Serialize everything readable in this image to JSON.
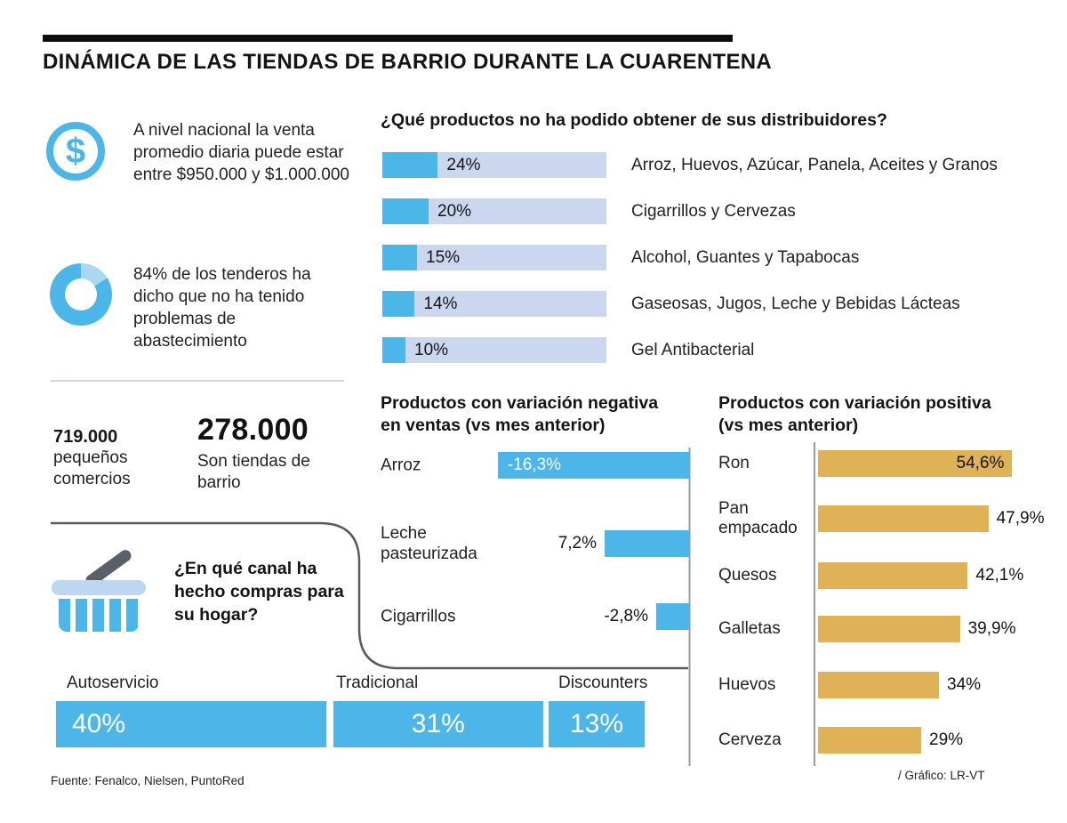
{
  "header": {
    "title": "DINÁMICA DE LAS TIENDAS DE BARRIO DURANTE LA CUARENTENA"
  },
  "left": {
    "dollar_symbol": "$",
    "sales_text": "A nivel nacional la venta promedio diaria puede estar entre $950.000 y $1.000.000",
    "supply_text": "84% de los tenderos ha dicho que no ha tenido problemas de abastecimiento",
    "small_commerce_value": "719.000",
    "small_commerce_label": "pequeños comercios",
    "barrio_value": "278.000",
    "barrio_label": "Son tiendas de barrio"
  },
  "footer": {
    "source": "Fuente: Fenalco, Nielsen, PuntoRed",
    "credit": "/ Gráfico: LR-VT"
  },
  "colors": {
    "accent_blue": "#4cb6e8",
    "light_blue_track": "#cbd7ee",
    "gold": "#e0b258",
    "basket_rim_blue": "#bcd7ef",
    "handle_gray": "#5b6068",
    "bar_black": "#0d0d0d"
  },
  "chart_data": [
    {
      "type": "bar",
      "title": "¿Qué productos no ha podido obtener de sus distribuidores?",
      "categories": [
        "Arroz, Huevos, Azúcar, Panela, Aceites y Granos",
        "Cigarrillos y Cervezas",
        "Alcohol, Guantes y Tapabocas",
        "Gaseosas, Jugos, Leche y Bebidas Lácteas",
        "Gel Antibacterial"
      ],
      "values": [
        24,
        20,
        15,
        14,
        10
      ],
      "value_labels": [
        "24%",
        "20%",
        "15%",
        "14%",
        "10%"
      ],
      "ylabel": "",
      "xlabel": "",
      "legend": "none",
      "grid": false
    },
    {
      "type": "bar",
      "title": "Productos con variación negativa en ventas (vs mes anterior)",
      "categories": [
        "Arroz",
        "Leche pasteurizada",
        "Cigarrillos"
      ],
      "values": [
        -16.3,
        7.2,
        -2.8
      ],
      "value_labels": [
        "-16,3%",
        "7,2%",
        "-2,8%"
      ],
      "orientation": "right-anchored",
      "grid": false
    },
    {
      "type": "bar",
      "title": "Productos con variación positiva (vs mes anterior)",
      "categories": [
        "Ron",
        "Pan empacado",
        "Quesos",
        "Galletas",
        "Huevos",
        "Cerveza"
      ],
      "values": [
        54.6,
        47.9,
        42.1,
        39.9,
        34,
        29
      ],
      "value_labels": [
        "54,6%",
        "47,9%",
        "42,1%",
        "39,9%",
        "34%",
        "29%"
      ],
      "orientation": "left-anchored",
      "grid": false
    },
    {
      "type": "bar",
      "title": "¿En qué canal ha hecho compras para su hogar?",
      "categories": [
        "Autoservicio",
        "Tradicional",
        "Discounters"
      ],
      "values": [
        40,
        31,
        13
      ],
      "value_labels": [
        "40%",
        "31%",
        "13%"
      ],
      "grid": false
    },
    {
      "type": "donut",
      "values": [
        84,
        16
      ]
    }
  ]
}
